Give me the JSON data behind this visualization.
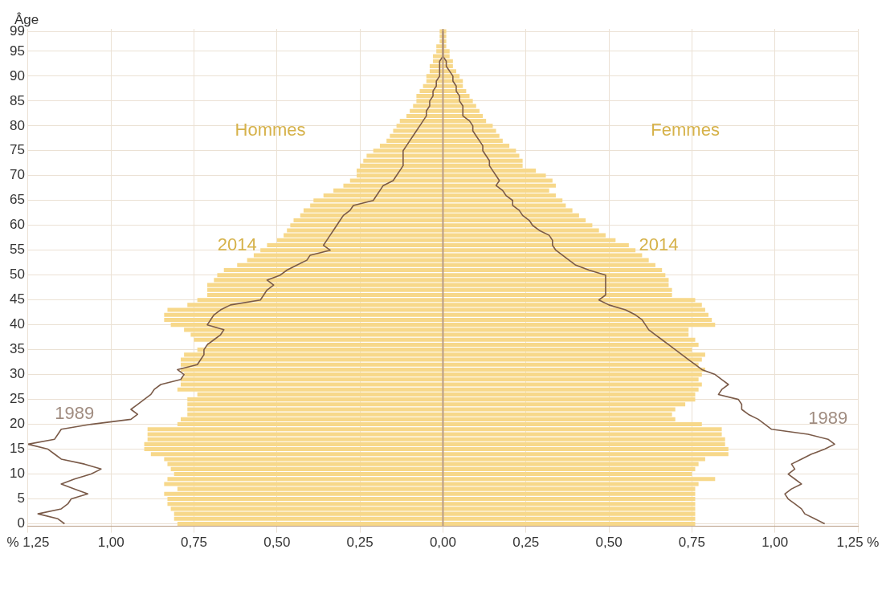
{
  "chart_data": {
    "type": "bar",
    "orientation": "horizontal",
    "stacked": true,
    "ylabel": "Âge",
    "grid": true,
    "categories": [
      "99",
      null,
      null,
      null,
      "95",
      null,
      null,
      null,
      null,
      "90",
      null,
      null,
      null,
      null,
      "85",
      null,
      null,
      null,
      null,
      "80",
      null,
      null,
      null,
      null,
      "75",
      null,
      null,
      null,
      null,
      "70",
      null,
      null,
      null,
      null,
      "65",
      null,
      null,
      null,
      null,
      "60",
      null,
      null,
      null,
      null,
      "55",
      null,
      null,
      null,
      null,
      "50",
      null,
      null,
      null,
      null,
      "45",
      null,
      null,
      null,
      null,
      "40",
      null,
      null,
      null,
      null,
      "35",
      null,
      null,
      null,
      null,
      "30",
      null,
      null,
      null,
      null,
      "25",
      null,
      null,
      null,
      null,
      "20",
      null,
      null,
      null,
      null,
      "15",
      null,
      null,
      null,
      null,
      "10",
      null,
      null,
      null,
      null,
      "5",
      null,
      null,
      null,
      null,
      "0"
    ],
    "xlim": [
      -1.25,
      1.25
    ],
    "xticks": [
      {
        "value": -1.25,
        "label": "% 1,25"
      },
      {
        "value": -1,
        "label": "1,00"
      },
      {
        "value": -0.75,
        "label": "0,75"
      },
      {
        "value": -0.5,
        "label": "0,50"
      },
      {
        "value": -0.25,
        "label": "0,25"
      },
      {
        "value": 0,
        "label": "0,00"
      },
      {
        "value": 0.25,
        "label": "0,25"
      },
      {
        "value": 0.5,
        "label": "0,50"
      },
      {
        "value": 0.75,
        "label": "0,75"
      },
      {
        "value": 1,
        "label": "1,00"
      },
      {
        "value": 1.25,
        "label": "1,25 %"
      }
    ],
    "series": [
      {
        "color": "#f7d88a",
        "values": [
          -0.01,
          -0.01,
          -0.01,
          -0.02,
          -0.02,
          -0.03,
          -0.03,
          -0.04,
          -0.04,
          -0.05,
          -0.05,
          -0.06,
          -0.07,
          -0.08,
          -0.08,
          -0.09,
          -0.1,
          -0.11,
          -0.13,
          -0.14,
          -0.15,
          -0.16,
          -0.17,
          -0.19,
          -0.21,
          -0.23,
          -0.24,
          -0.25,
          -0.26,
          -0.26,
          -0.28,
          -0.3,
          -0.33,
          -0.36,
          -0.39,
          -0.4,
          -0.42,
          -0.43,
          -0.45,
          -0.46,
          -0.47,
          -0.48,
          -0.5,
          -0.53,
          -0.55,
          -0.57,
          -0.59,
          -0.62,
          -0.66,
          -0.68,
          -0.69,
          -0.71,
          -0.71,
          -0.71,
          -0.74,
          -0.77,
          -0.83,
          -0.84,
          -0.84,
          -0.82,
          -0.78,
          -0.76,
          -0.75,
          -0.71,
          -0.74,
          -0.78,
          -0.79,
          -0.79,
          -0.79,
          -0.78,
          -0.79,
          -0.79,
          -0.8,
          -0.74,
          -0.77,
          -0.77,
          -0.77,
          -0.77,
          -0.79,
          -0.8,
          -0.89,
          -0.89,
          -0.89,
          -0.9,
          -0.9,
          -0.88,
          -0.84,
          -0.83,
          -0.82,
          -0.81,
          -0.83,
          -0.84,
          -0.8,
          -0.84,
          -0.83,
          -0.83,
          -0.82,
          -0.81,
          -0.81,
          -0.8
        ]
      },
      {
        "color": "#f7d88a",
        "values": [
          0.01,
          0.01,
          0.01,
          0.01,
          0.02,
          0.02,
          0.03,
          0.03,
          0.04,
          0.05,
          0.06,
          0.06,
          0.07,
          0.08,
          0.09,
          0.1,
          0.11,
          0.12,
          0.13,
          0.15,
          0.16,
          0.17,
          0.18,
          0.2,
          0.22,
          0.23,
          0.24,
          0.24,
          0.28,
          0.31,
          0.33,
          0.34,
          0.32,
          0.34,
          0.36,
          0.37,
          0.39,
          0.41,
          0.43,
          0.45,
          0.47,
          0.49,
          0.52,
          0.56,
          0.58,
          0.6,
          0.62,
          0.64,
          0.66,
          0.67,
          0.68,
          0.68,
          0.69,
          0.69,
          0.76,
          0.78,
          0.79,
          0.8,
          0.81,
          0.82,
          0.74,
          0.74,
          0.76,
          0.77,
          0.75,
          0.79,
          0.78,
          0.77,
          0.79,
          0.78,
          0.77,
          0.78,
          0.77,
          0.76,
          0.76,
          0.73,
          0.7,
          0.69,
          0.7,
          0.78,
          0.84,
          0.84,
          0.85,
          0.85,
          0.86,
          0.86,
          0.79,
          0.77,
          0.76,
          0.75,
          0.82,
          0.77,
          0.76,
          0.76,
          0.76,
          0.76,
          0.76,
          0.76,
          0.76,
          0.76
        ]
      },
      {
        "type": "line",
        "color": "#7a5a48",
        "values": [
          0,
          0,
          0,
          0,
          0,
          0,
          -0.01,
          -0.01,
          -0.01,
          -0.01,
          -0.02,
          -0.02,
          -0.03,
          -0.03,
          -0.04,
          -0.04,
          -0.05,
          -0.05,
          -0.06,
          -0.07,
          -0.08,
          -0.09,
          -0.1,
          -0.11,
          -0.12,
          -0.12,
          -0.12,
          -0.12,
          -0.13,
          -0.14,
          -0.15,
          -0.18,
          -0.19,
          -0.2,
          -0.21,
          -0.27,
          -0.28,
          -0.3,
          -0.31,
          -0.32,
          -0.33,
          -0.34,
          -0.35,
          -0.36,
          -0.34,
          -0.4,
          -0.41,
          -0.44,
          -0.47,
          -0.49,
          -0.53,
          -0.51,
          -0.53,
          -0.54,
          -0.55,
          -0.64,
          -0.67,
          -0.69,
          -0.7,
          -0.71,
          -0.66,
          -0.67,
          -0.69,
          -0.71,
          -0.72,
          -0.72,
          -0.73,
          -0.74,
          -0.8,
          -0.78,
          -0.79,
          -0.85,
          -0.87,
          -0.88,
          -0.9,
          -0.92,
          -0.94,
          -0.92,
          -0.94,
          -1.06,
          -1.15,
          -1.16,
          -1.17,
          -1.25,
          -1.19,
          -1.17,
          -1.15,
          -1.08,
          -1.03,
          -1.06,
          -1.11,
          -1.15,
          -1.11,
          -1.07,
          -1.12,
          -1.13,
          -1.15,
          -1.22,
          -1.16,
          -1.14
        ]
      },
      {
        "type": "line",
        "color": "#7a5a48",
        "values": [
          0,
          0,
          0,
          0,
          0,
          0,
          0.01,
          0.01,
          0.02,
          0.03,
          0.03,
          0.04,
          0.04,
          0.05,
          0.05,
          0.06,
          0.06,
          0.06,
          0.08,
          0.09,
          0.09,
          0.1,
          0.11,
          0.12,
          0.12,
          0.13,
          0.14,
          0.14,
          0.15,
          0.16,
          0.17,
          0.16,
          0.18,
          0.19,
          0.21,
          0.21,
          0.23,
          0.24,
          0.26,
          0.27,
          0.29,
          0.32,
          0.33,
          0.33,
          0.34,
          0.36,
          0.38,
          0.4,
          0.44,
          0.49,
          0.49,
          0.49,
          0.49,
          0.49,
          0.47,
          0.5,
          0.55,
          0.58,
          0.6,
          0.61,
          0.62,
          0.64,
          0.66,
          0.68,
          0.7,
          0.72,
          0.74,
          0.76,
          0.78,
          0.82,
          0.84,
          0.86,
          0.84,
          0.83,
          0.89,
          0.9,
          0.9,
          0.92,
          0.95,
          0.97,
          0.99,
          1.1,
          1.16,
          1.18,
          1.15,
          1.11,
          1.08,
          1.05,
          1.06,
          1.04,
          1.06,
          1.08,
          1.05,
          1.03,
          1.04,
          1.06,
          1.08,
          1.09,
          1.12,
          1.15
        ]
      }
    ],
    "ref_lines": [
      {
        "axis": "x",
        "value": 0,
        "color": "#b89c84"
      }
    ],
    "annotations": [
      "Hommes",
      "Femmes",
      "2014",
      "2014",
      "1989",
      "1989"
    ]
  }
}
